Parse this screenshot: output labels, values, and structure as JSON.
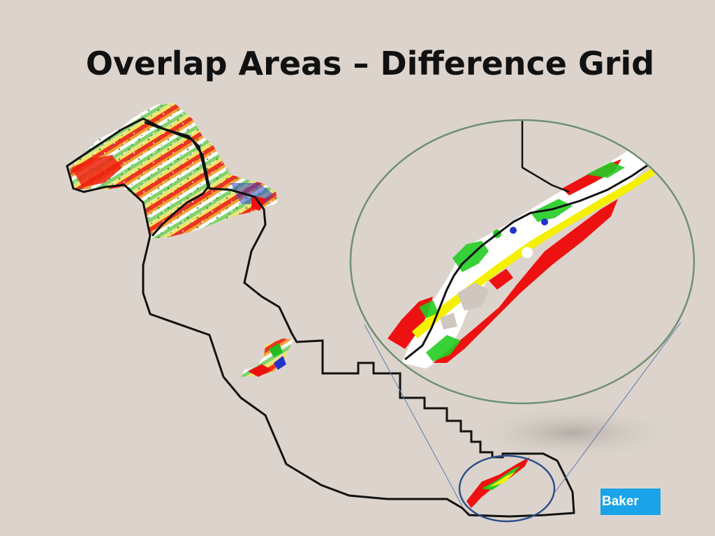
{
  "slide": {
    "title": "Overlap Areas – Difference Grid",
    "logo_text": "Baker"
  },
  "colors": {
    "background": "#dcd4cc",
    "outline": "#111111",
    "zoom_circle": "#6f8f73",
    "source_circle": "#2f4f8a",
    "connector": "#5b79b0",
    "logo": "#1aa3e8",
    "diff_red": "#ee1111",
    "diff_yellow": "#f4f000",
    "diff_green": "#22cc22",
    "diff_blue": "#2233cc"
  },
  "legend": null
}
